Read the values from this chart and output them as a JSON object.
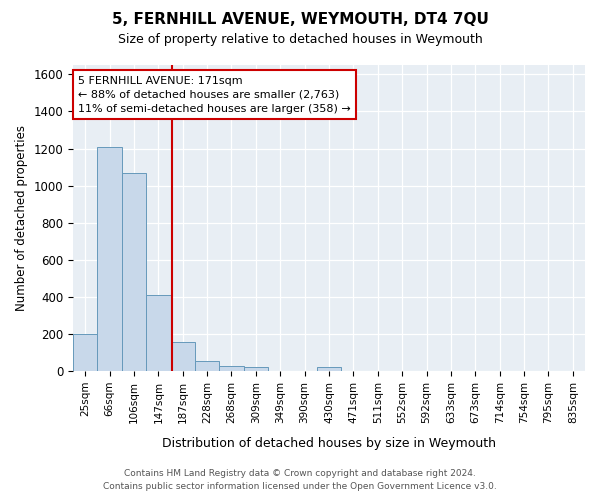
{
  "title": "5, FERNHILL AVENUE, WEYMOUTH, DT4 7QU",
  "subtitle": "Size of property relative to detached houses in Weymouth",
  "xlabel": "Distribution of detached houses by size in Weymouth",
  "ylabel": "Number of detached properties",
  "bin_labels": [
    "25sqm",
    "66sqm",
    "106sqm",
    "147sqm",
    "187sqm",
    "228sqm",
    "268sqm",
    "309sqm",
    "349sqm",
    "390sqm",
    "430sqm",
    "471sqm",
    "511sqm",
    "552sqm",
    "592sqm",
    "633sqm",
    "673sqm",
    "714sqm",
    "754sqm",
    "795sqm",
    "835sqm"
  ],
  "bar_heights": [
    200,
    1210,
    1070,
    410,
    160,
    55,
    30,
    25,
    0,
    0,
    25,
    0,
    0,
    0,
    0,
    0,
    0,
    0,
    0,
    0,
    0
  ],
  "bar_color": "#c8d8ea",
  "bar_edge_color": "#6699bb",
  "vline_x_index": 3.58,
  "vline_color": "#cc0000",
  "ylim": [
    0,
    1650
  ],
  "yticks": [
    0,
    200,
    400,
    600,
    800,
    1000,
    1200,
    1400,
    1600
  ],
  "annotation_text": "5 FERNHILL AVENUE: 171sqm\n← 88% of detached houses are smaller (2,763)\n11% of semi-detached houses are larger (358) →",
  "annotation_box_facecolor": "#ffffff",
  "annotation_box_edgecolor": "#cc0000",
  "footer_line1": "Contains HM Land Registry data © Crown copyright and database right 2024.",
  "footer_line2": "Contains public sector information licensed under the Open Government Licence v3.0.",
  "fig_facecolor": "#ffffff",
  "plot_facecolor": "#e8eef4"
}
